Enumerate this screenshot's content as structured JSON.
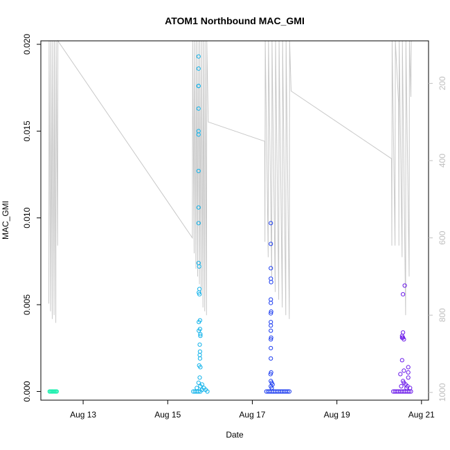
{
  "chart_data": {
    "type": "scatter",
    "title": "ATOM1 Northbound MAC_GMI",
    "xlabel": "Date",
    "ylabel": "MAC_GMI",
    "xlim": [
      "2016-08-12T00:00",
      "2016-08-21T04:00"
    ],
    "ylim": [
      -0.0005,
      0.0202
    ],
    "x_ticks": [
      {
        "label": "Aug 13",
        "value": "2016-08-13"
      },
      {
        "label": "Aug 15",
        "value": "2016-08-15"
      },
      {
        "label": "Aug 17",
        "value": "2016-08-17"
      },
      {
        "label": "Aug 19",
        "value": "2016-08-19"
      },
      {
        "label": "Aug 21",
        "value": "2016-08-21"
      }
    ],
    "y_ticks": [
      "0.000",
      "0.005",
      "0.010",
      "0.015",
      "0.020"
    ],
    "y2_ticks": [
      "200",
      "400",
      "600",
      "800",
      "1000"
    ],
    "y2_range": [
      90,
      1020
    ],
    "y2_reversed": true,
    "grid": false,
    "legend": "none",
    "colors": {
      "group1": "#1ff0b0",
      "group2": "#0fb2ea",
      "group3": "#1c3cf0",
      "group4": "#6a18ea",
      "line": "#c8c8c8"
    },
    "series": [
      {
        "values": [
          [
            "2016-08-12T05:00",
            0.0
          ],
          [
            "2016-08-12T05:30",
            0.0
          ],
          [
            "2016-08-12T06:00",
            0.0
          ],
          [
            "2016-08-12T06:30",
            0.0
          ],
          [
            "2016-08-12T07:00",
            0.0
          ],
          [
            "2016-08-12T07:30",
            0.0
          ],
          [
            "2016-08-12T08:00",
            0.0
          ],
          [
            "2016-08-12T08:30",
            0.0
          ],
          [
            "2016-08-12T09:00",
            0.0
          ]
        ]
      },
      {
        "values": [
          [
            "2016-08-15T14:30",
            0.0
          ],
          [
            "2016-08-15T15:30",
            0.0
          ],
          [
            "2016-08-15T16:30",
            0.0
          ],
          [
            "2016-08-15T17:30",
            0.0
          ],
          [
            "2016-08-15T18:30",
            0.0
          ],
          [
            "2016-08-15T19:30",
            0.0001
          ],
          [
            "2016-08-15T20:30",
            0.0002
          ],
          [
            "2016-08-15T21:30",
            0.0001
          ],
          [
            "2016-08-15T22:30",
            0.0
          ],
          [
            "2016-08-15T17:30",
            0.0193
          ],
          [
            "2016-08-15T17:30",
            0.0186
          ],
          [
            "2016-08-15T17:30",
            0.0176
          ],
          [
            "2016-08-15T17:30",
            0.0176
          ],
          [
            "2016-08-15T17:30",
            0.0163
          ],
          [
            "2016-08-15T17:30",
            0.015
          ],
          [
            "2016-08-15T17:30",
            0.0148
          ],
          [
            "2016-08-15T17:30",
            0.0127
          ],
          [
            "2016-08-15T17:30",
            0.0106
          ],
          [
            "2016-08-15T17:30",
            0.0097
          ],
          [
            "2016-08-15T17:30",
            0.0074
          ],
          [
            "2016-08-15T17:50",
            0.0072
          ],
          [
            "2016-08-15T18:00",
            0.0059
          ],
          [
            "2016-08-15T17:40",
            0.0057
          ],
          [
            "2016-08-15T18:00",
            0.0056
          ],
          [
            "2016-08-15T18:20",
            0.0041
          ],
          [
            "2016-08-15T17:40",
            0.004
          ],
          [
            "2016-08-15T17:40",
            0.0035
          ],
          [
            "2016-08-15T18:20",
            0.0036
          ],
          [
            "2016-08-15T18:30",
            0.0033
          ],
          [
            "2016-08-15T18:30",
            0.0032
          ],
          [
            "2016-08-15T18:10",
            0.0027
          ],
          [
            "2016-08-15T18:20",
            0.0023
          ],
          [
            "2016-08-15T18:10",
            0.0021
          ],
          [
            "2016-08-15T18:20",
            0.0019
          ],
          [
            "2016-08-15T17:50",
            0.0015
          ],
          [
            "2016-08-15T18:30",
            0.0014
          ],
          [
            "2016-08-15T18:10",
            0.0008
          ],
          [
            "2016-08-15T17:30",
            0.0005
          ],
          [
            "2016-08-15T18:30",
            0.0003
          ],
          [
            "2016-08-15T16:30",
            0.0002
          ],
          [
            "2016-08-15T19:30",
            0.0004
          ]
        ]
      },
      {
        "values": [
          [
            "2016-08-17T08:00",
            0.0
          ],
          [
            "2016-08-17T09:00",
            0.0
          ],
          [
            "2016-08-17T10:00",
            0.0
          ],
          [
            "2016-08-17T11:00",
            0.0
          ],
          [
            "2016-08-17T12:00",
            0.0
          ],
          [
            "2016-08-17T13:00",
            0.0
          ],
          [
            "2016-08-17T14:00",
            0.0
          ],
          [
            "2016-08-17T15:00",
            0.0
          ],
          [
            "2016-08-17T16:00",
            0.0
          ],
          [
            "2016-08-17T17:00",
            0.0
          ],
          [
            "2016-08-17T18:00",
            0.0
          ],
          [
            "2016-08-17T19:00",
            0.0
          ],
          [
            "2016-08-17T20:00",
            0.0
          ],
          [
            "2016-08-17T21:00",
            0.0
          ],
          [
            "2016-08-17T10:30",
            0.0097
          ],
          [
            "2016-08-17T10:30",
            0.0085
          ],
          [
            "2016-08-17T10:30",
            0.0071
          ],
          [
            "2016-08-17T10:30",
            0.0065
          ],
          [
            "2016-08-17T10:40",
            0.0063
          ],
          [
            "2016-08-17T10:30",
            0.0053
          ],
          [
            "2016-08-17T10:30",
            0.0051
          ],
          [
            "2016-08-17T10:40",
            0.0046
          ],
          [
            "2016-08-17T10:30",
            0.0045
          ],
          [
            "2016-08-17T10:30",
            0.004
          ],
          [
            "2016-08-17T10:30",
            0.0038
          ],
          [
            "2016-08-17T10:30",
            0.0035
          ],
          [
            "2016-08-17T10:40",
            0.0031
          ],
          [
            "2016-08-17T10:30",
            0.003
          ],
          [
            "2016-08-17T10:30",
            0.0025
          ],
          [
            "2016-08-17T10:30",
            0.0019
          ],
          [
            "2016-08-17T10:40",
            0.0011
          ],
          [
            "2016-08-17T10:20",
            0.001
          ],
          [
            "2016-08-17T10:30",
            0.0006
          ],
          [
            "2016-08-17T11:00",
            0.0005
          ],
          [
            "2016-08-17T11:30",
            0.0004
          ],
          [
            "2016-08-17T10:30",
            0.0003
          ],
          [
            "2016-08-17T11:00",
            0.0002
          ]
        ]
      },
      {
        "values": [
          [
            "2016-08-20T08:00",
            0.0
          ],
          [
            "2016-08-20T09:00",
            0.0
          ],
          [
            "2016-08-20T10:00",
            0.0
          ],
          [
            "2016-08-20T11:00",
            0.0
          ],
          [
            "2016-08-20T12:00",
            0.0
          ],
          [
            "2016-08-20T13:00",
            0.0
          ],
          [
            "2016-08-20T14:00",
            0.0
          ],
          [
            "2016-08-20T15:00",
            0.0
          ],
          [
            "2016-08-20T16:00",
            0.0
          ],
          [
            "2016-08-20T17:00",
            0.0
          ],
          [
            "2016-08-20T18:00",
            0.0
          ],
          [
            "2016-08-20T14:30",
            0.0061
          ],
          [
            "2016-08-20T13:30",
            0.0056
          ],
          [
            "2016-08-20T13:30",
            0.0034
          ],
          [
            "2016-08-20T13:00",
            0.0032
          ],
          [
            "2016-08-20T13:30",
            0.0031
          ],
          [
            "2016-08-20T14:00",
            0.003
          ],
          [
            "2016-08-20T13:00",
            0.0031
          ],
          [
            "2016-08-20T13:00",
            0.0018
          ],
          [
            "2016-08-20T16:30",
            0.0014
          ],
          [
            "2016-08-20T14:00",
            0.0012
          ],
          [
            "2016-08-20T16:30",
            0.0011
          ],
          [
            "2016-08-20T12:00",
            0.001
          ],
          [
            "2016-08-20T16:30",
            0.0008
          ],
          [
            "2016-08-20T13:30",
            0.0006
          ],
          [
            "2016-08-20T14:00",
            0.0005
          ],
          [
            "2016-08-20T15:00",
            0.0004
          ],
          [
            "2016-08-20T16:00",
            0.0003
          ],
          [
            "2016-08-20T15:30",
            0.0002
          ],
          [
            "2016-08-20T17:30",
            0.0002
          ],
          [
            "2016-08-20T12:30",
            0.0003
          ]
        ]
      }
    ],
    "overlay_line": {
      "axis": "right",
      "values": [
        [
          "2016-08-12T04:30",
          770
        ],
        [
          "2016-08-12T04:40",
          90
        ],
        [
          "2016-08-12T05:30",
          790
        ],
        [
          "2016-08-12T05:40",
          90
        ],
        [
          "2016-08-12T06:30",
          810
        ],
        [
          "2016-08-12T06:40",
          90
        ],
        [
          "2016-08-12T07:30",
          800
        ],
        [
          "2016-08-12T07:40",
          90
        ],
        [
          "2016-08-12T08:30",
          820
        ],
        [
          "2016-08-12T08:40",
          90
        ],
        [
          "2016-08-12T09:30",
          620
        ],
        [
          "2016-08-12T09:40",
          90
        ],
        [
          "2016-08-15T14:00",
          600
        ],
        [
          "2016-08-15T14:10",
          90
        ],
        [
          "2016-08-15T15:00",
          640
        ],
        [
          "2016-08-15T15:10",
          90
        ],
        [
          "2016-08-15T16:00",
          680
        ],
        [
          "2016-08-15T16:10",
          90
        ],
        [
          "2016-08-15T17:00",
          700
        ],
        [
          "2016-08-15T17:10",
          90
        ],
        [
          "2016-08-15T18:00",
          720
        ],
        [
          "2016-08-15T18:10",
          90
        ],
        [
          "2016-08-15T19:00",
          750
        ],
        [
          "2016-08-15T19:10",
          90
        ],
        [
          "2016-08-15T20:00",
          780
        ],
        [
          "2016-08-15T20:10",
          90
        ],
        [
          "2016-08-15T21:00",
          790
        ],
        [
          "2016-08-15T21:10",
          90
        ],
        [
          "2016-08-15T22:00",
          800
        ],
        [
          "2016-08-15T22:10",
          90
        ],
        [
          "2016-08-15T23:00",
          300
        ],
        [
          "2016-08-17T07:00",
          350
        ],
        [
          "2016-08-17T07:10",
          610
        ],
        [
          "2016-08-17T07:20",
          90
        ],
        [
          "2016-08-17T09:00",
          650
        ],
        [
          "2016-08-17T09:10",
          90
        ],
        [
          "2016-08-17T11:00",
          700
        ],
        [
          "2016-08-17T11:10",
          90
        ],
        [
          "2016-08-17T13:00",
          740
        ],
        [
          "2016-08-17T13:10",
          90
        ],
        [
          "2016-08-17T15:00",
          760
        ],
        [
          "2016-08-17T15:10",
          90
        ],
        [
          "2016-08-17T17:00",
          780
        ],
        [
          "2016-08-17T17:10",
          90
        ],
        [
          "2016-08-17T19:00",
          800
        ],
        [
          "2016-08-17T19:10",
          90
        ],
        [
          "2016-08-17T21:00",
          810
        ],
        [
          "2016-08-17T21:10",
          90
        ],
        [
          "2016-08-17T22:00",
          220
        ],
        [
          "2016-08-20T07:00",
          395
        ],
        [
          "2016-08-20T07:10",
          620
        ],
        [
          "2016-08-20T07:20",
          90
        ],
        [
          "2016-08-20T09:00",
          620
        ],
        [
          "2016-08-20T09:10",
          90
        ],
        [
          "2016-08-20T11:00",
          250
        ],
        [
          "2016-08-20T11:10",
          620
        ],
        [
          "2016-08-20T11:20",
          90
        ],
        [
          "2016-08-20T13:00",
          650
        ],
        [
          "2016-08-20T13:10",
          90
        ],
        [
          "2016-08-20T15:00",
          800
        ],
        [
          "2016-08-20T15:10",
          90
        ],
        [
          "2016-08-20T17:00",
          700
        ],
        [
          "2016-08-20T17:10",
          90
        ],
        [
          "2016-08-20T18:00",
          235
        ],
        [
          "2016-08-20T18:10",
          90
        ]
      ]
    }
  }
}
